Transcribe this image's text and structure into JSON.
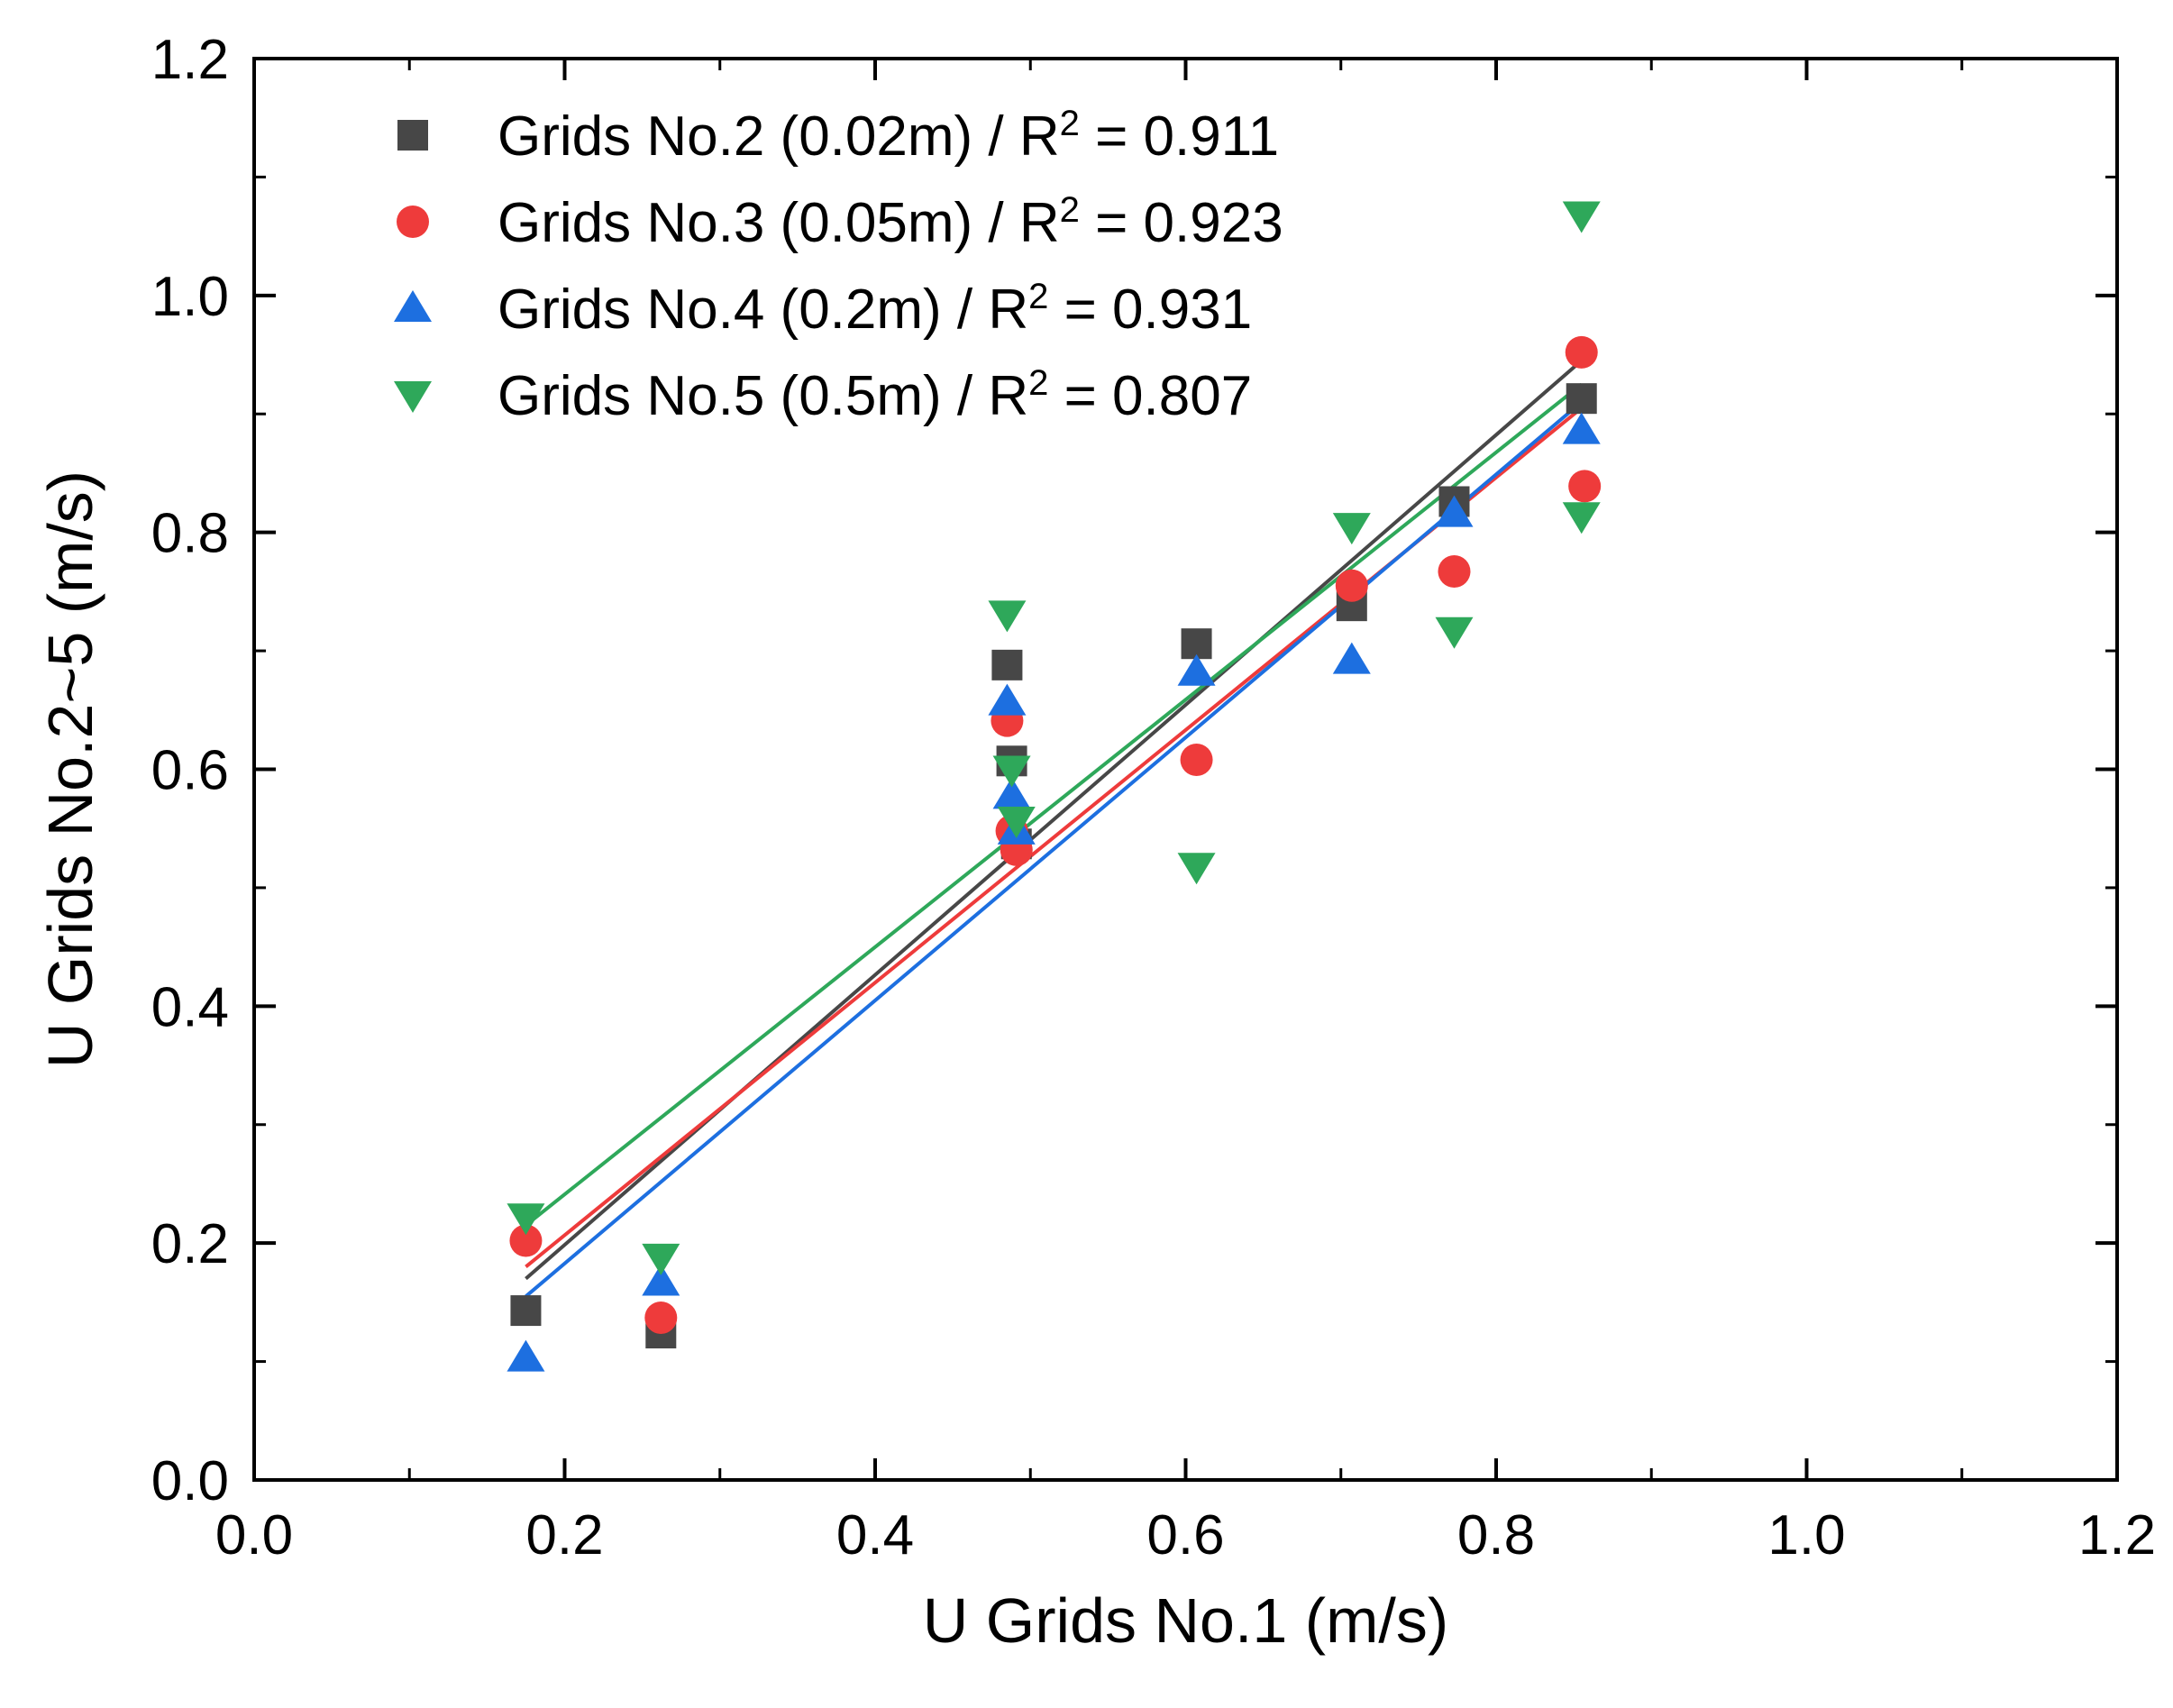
{
  "chart_data": {
    "type": "scatter",
    "title": "",
    "xlabel": "U Grids No.1 (m/s)",
    "ylabel": "U Grids No.2~5 (m/s)",
    "xlim": [
      0.0,
      1.2
    ],
    "ylim": [
      0.0,
      1.2
    ],
    "x_ticks": [
      "0.0",
      "0.2",
      "0.4",
      "0.6",
      "0.8",
      "1.0",
      "1.2"
    ],
    "y_ticks": [
      "0.0",
      "0.2",
      "0.4",
      "0.6",
      "0.8",
      "1.0",
      "1.2"
    ],
    "grid": false,
    "legend_position": "top-left",
    "series": [
      {
        "name": "Grids No.2 (0.02m) / R² = 0.911",
        "label_main": "Grids No.2 (0.02m) / R",
        "label_sup": "2",
        "label_tail": " = 0.911",
        "marker": "square",
        "color": "#474747",
        "x": [
          0.175,
          0.262,
          0.485,
          0.488,
          0.491,
          0.607,
          0.707,
          0.773,
          0.855
        ],
        "y": [
          0.143,
          0.124,
          0.688,
          0.607,
          0.537,
          0.706,
          0.738,
          0.826,
          0.913
        ],
        "fit": {
          "x": [
            0.175,
            0.855
          ],
          "y": [
            0.17,
            0.945
          ]
        }
      },
      {
        "name": "Grids No.3 (0.05m) / R² = 0.923",
        "label_main": "Grids No.3 (0.05m) / R",
        "label_sup": "2",
        "label_tail": " = 0.923",
        "marker": "circle",
        "color": "#ee3b3b",
        "x": [
          0.175,
          0.262,
          0.485,
          0.488,
          0.491,
          0.607,
          0.707,
          0.773,
          0.855,
          0.857
        ],
        "y": [
          0.202,
          0.137,
          0.641,
          0.548,
          0.532,
          0.608,
          0.755,
          0.767,
          0.952,
          0.839
        ],
        "fit": {
          "x": [
            0.175,
            0.855
          ],
          "y": [
            0.18,
            0.905
          ]
        }
      },
      {
        "name": "Grids No.4 (0.2m) / R² = 0.931",
        "label_main": "Grids No.4 (0.2m) / R",
        "label_sup": "2",
        "label_tail": " = 0.931",
        "marker": "triangle-up",
        "color": "#1d6fe0",
        "x": [
          0.175,
          0.262,
          0.485,
          0.488,
          0.491,
          0.607,
          0.707,
          0.773,
          0.855
        ],
        "y": [
          0.103,
          0.167,
          0.657,
          0.578,
          0.548,
          0.682,
          0.692,
          0.816,
          0.886
        ],
        "fit": {
          "x": [
            0.175,
            0.855
          ],
          "y": [
            0.155,
            0.91
          ]
        }
      },
      {
        "name": "Grids No.5 (0.5m) / R² = 0.807",
        "label_main": "Grids No.5 (0.5m) / R",
        "label_sup": "2",
        "label_tail": " = 0.807",
        "marker": "triangle-down",
        "color": "#2ea85a",
        "x": [
          0.175,
          0.262,
          0.485,
          0.488,
          0.491,
          0.607,
          0.707,
          0.773,
          0.855,
          0.855
        ],
        "y": [
          0.222,
          0.188,
          0.731,
          0.6,
          0.557,
          0.518,
          0.805,
          0.717,
          1.068,
          0.814
        ],
        "fit": {
          "x": [
            0.175,
            0.855
          ],
          "y": [
            0.215,
            0.925
          ]
        }
      }
    ]
  }
}
